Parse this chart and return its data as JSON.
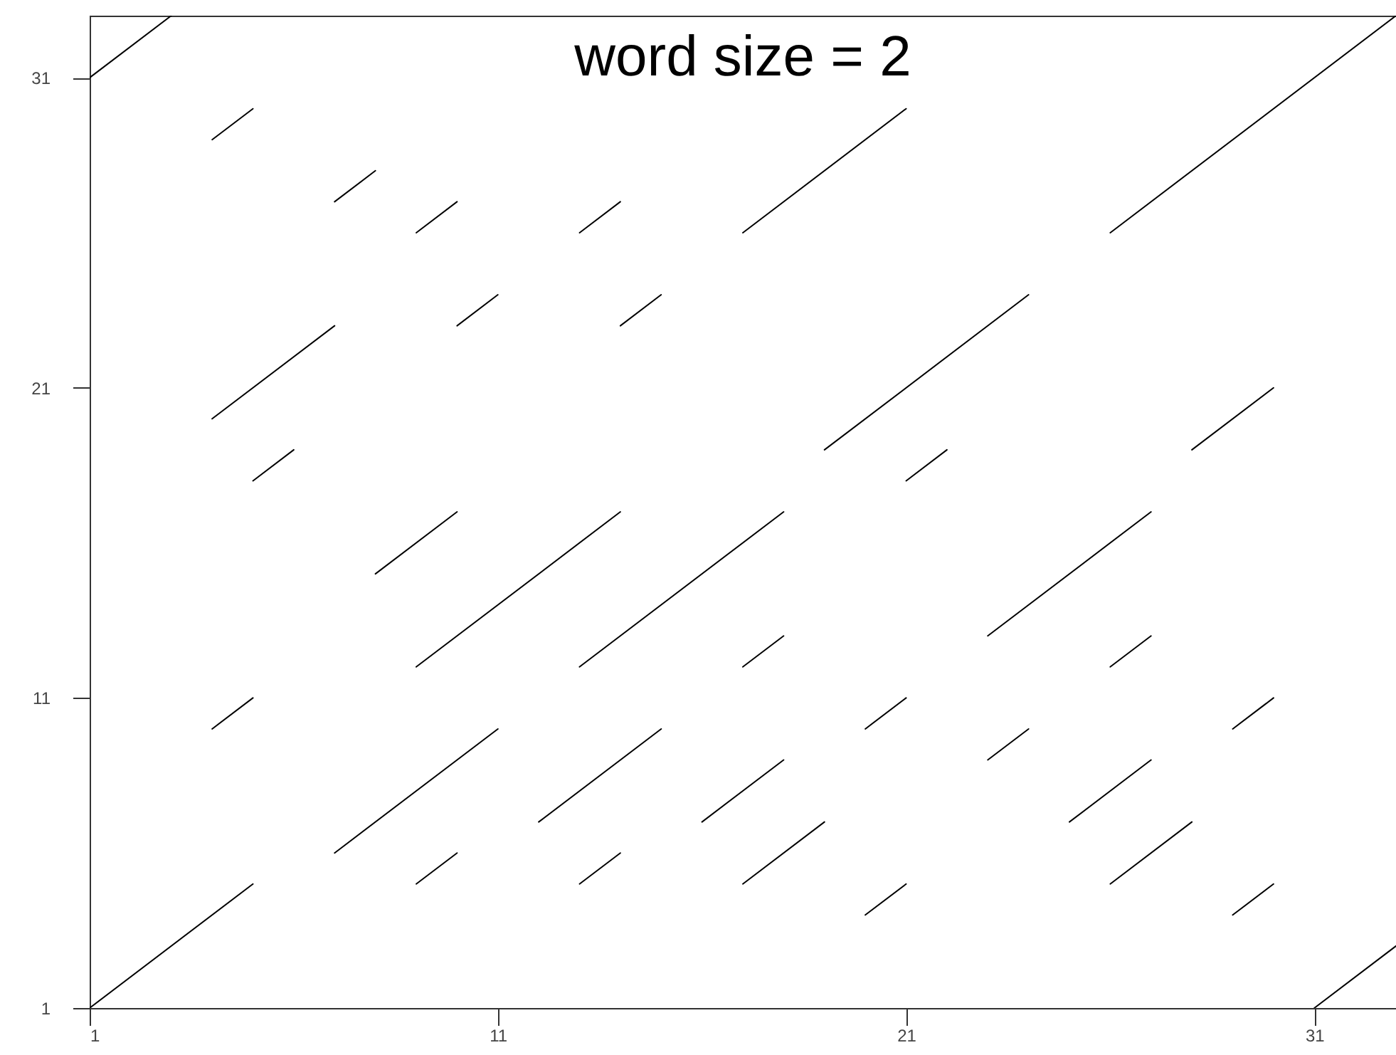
{
  "chart_data": {
    "type": "line",
    "title": "word size = 2",
    "xlim": [
      1,
      33
    ],
    "ylim": [
      1,
      33
    ],
    "xticks": [
      1,
      11,
      21,
      31
    ],
    "yticks": [
      1,
      11,
      21,
      31
    ],
    "series": [
      {
        "color": "#000000",
        "x": [
          1,
          5
        ],
        "values": [
          1,
          5
        ]
      },
      {
        "color": "#000000",
        "x": [
          1,
          3
        ],
        "values": [
          31,
          33
        ]
      },
      {
        "color": "#000000",
        "x": [
          4,
          5
        ],
        "values": [
          29,
          30
        ]
      },
      {
        "color": "#000000",
        "x": [
          7,
          8
        ],
        "values": [
          27,
          28
        ]
      },
      {
        "color": "#000000",
        "x": [
          9,
          10
        ],
        "values": [
          26,
          27
        ]
      },
      {
        "color": "#000000",
        "x": [
          13,
          14
        ],
        "values": [
          26,
          27
        ]
      },
      {
        "color": "#000000",
        "x": [
          10,
          11
        ],
        "values": [
          23,
          24
        ]
      },
      {
        "color": "#000000",
        "x": [
          14,
          15
        ],
        "values": [
          23,
          24
        ]
      },
      {
        "color": "#000000",
        "x": [
          4,
          7
        ],
        "values": [
          20,
          23
        ]
      },
      {
        "color": "#000000",
        "x": [
          5,
          6
        ],
        "values": [
          18,
          19
        ]
      },
      {
        "color": "#000000",
        "x": [
          17,
          21
        ],
        "values": [
          26,
          30
        ]
      },
      {
        "color": "#000000",
        "x": [
          26,
          33
        ],
        "values": [
          26,
          33
        ]
      },
      {
        "color": "#000000",
        "x": [
          19,
          24
        ],
        "values": [
          19,
          24
        ]
      },
      {
        "color": "#000000",
        "x": [
          21,
          22
        ],
        "values": [
          18,
          19
        ]
      },
      {
        "color": "#000000",
        "x": [
          28,
          30
        ],
        "values": [
          19,
          21
        ]
      },
      {
        "color": "#000000",
        "x": [
          8,
          10
        ],
        "values": [
          15,
          17
        ]
      },
      {
        "color": "#000000",
        "x": [
          9,
          14
        ],
        "values": [
          12,
          17
        ]
      },
      {
        "color": "#000000",
        "x": [
          13,
          18
        ],
        "values": [
          12,
          17
        ]
      },
      {
        "color": "#000000",
        "x": [
          4,
          5
        ],
        "values": [
          10,
          11
        ]
      },
      {
        "color": "#000000",
        "x": [
          7,
          11
        ],
        "values": [
          6,
          10
        ]
      },
      {
        "color": "#000000",
        "x": [
          12,
          15
        ],
        "values": [
          7,
          10
        ]
      },
      {
        "color": "#000000",
        "x": [
          9,
          10
        ],
        "values": [
          5,
          6
        ]
      },
      {
        "color": "#000000",
        "x": [
          13,
          14
        ],
        "values": [
          5,
          6
        ]
      },
      {
        "color": "#000000",
        "x": [
          23,
          27
        ],
        "values": [
          13,
          17
        ]
      },
      {
        "color": "#000000",
        "x": [
          17,
          18
        ],
        "values": [
          12,
          13
        ]
      },
      {
        "color": "#000000",
        "x": [
          26,
          27
        ],
        "values": [
          12,
          13
        ]
      },
      {
        "color": "#000000",
        "x": [
          20,
          21
        ],
        "values": [
          10,
          11
        ]
      },
      {
        "color": "#000000",
        "x": [
          23,
          24
        ],
        "values": [
          9,
          10
        ]
      },
      {
        "color": "#000000",
        "x": [
          29,
          30
        ],
        "values": [
          10,
          11
        ]
      },
      {
        "color": "#000000",
        "x": [
          16,
          18
        ],
        "values": [
          7,
          9
        ]
      },
      {
        "color": "#000000",
        "x": [
          25,
          27
        ],
        "values": [
          7,
          9
        ]
      },
      {
        "color": "#000000",
        "x": [
          17,
          19
        ],
        "values": [
          5,
          7
        ]
      },
      {
        "color": "#000000",
        "x": [
          26,
          28
        ],
        "values": [
          5,
          7
        ]
      },
      {
        "color": "#000000",
        "x": [
          20,
          21
        ],
        "values": [
          4,
          5
        ]
      },
      {
        "color": "#000000",
        "x": [
          29,
          30
        ],
        "values": [
          4,
          5
        ]
      },
      {
        "color": "#000000",
        "x": [
          31,
          33
        ],
        "values": [
          1,
          3
        ]
      }
    ]
  }
}
